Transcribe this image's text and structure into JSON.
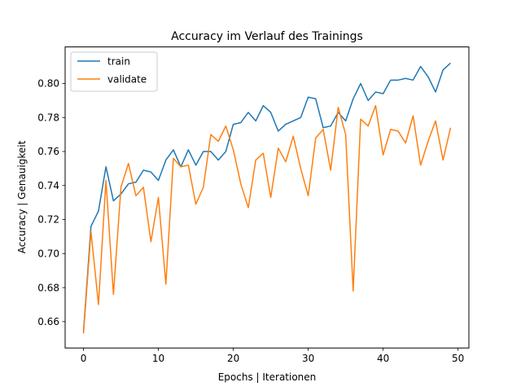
{
  "chart_data": {
    "type": "line",
    "title": "Accuracy im Verlauf des Trainings",
    "xlabel": "Epochs | Iterationen",
    "ylabel": "Accuracy | Genauigkeit",
    "xlim": [
      -2.45,
      51.45
    ],
    "ylim": [
      0.6445,
      0.8215
    ],
    "xticks": [
      0,
      10,
      20,
      30,
      40,
      50
    ],
    "xtick_labels": [
      "0",
      "10",
      "20",
      "30",
      "40",
      "50"
    ],
    "yticks": [
      0.66,
      0.68,
      0.7,
      0.72,
      0.74,
      0.76,
      0.78,
      0.8
    ],
    "ytick_labels": [
      "0.66",
      "0.68",
      "0.70",
      "0.72",
      "0.74",
      "0.76",
      "0.78",
      "0.80"
    ],
    "grid": false,
    "legend_position": "top-left",
    "x": [
      0,
      1,
      2,
      3,
      4,
      5,
      6,
      7,
      8,
      9,
      10,
      11,
      12,
      13,
      14,
      15,
      16,
      17,
      18,
      19,
      20,
      21,
      22,
      23,
      24,
      25,
      26,
      27,
      28,
      29,
      30,
      31,
      32,
      33,
      34,
      35,
      36,
      37,
      38,
      39,
      40,
      41,
      42,
      43,
      44,
      45,
      46,
      47,
      48,
      49
    ],
    "series": [
      {
        "name": "train",
        "color": "#1f77b4",
        "values": [
          0.654,
          0.716,
          0.725,
          0.751,
          0.731,
          0.735,
          0.741,
          0.742,
          0.749,
          0.748,
          0.743,
          0.755,
          0.761,
          0.751,
          0.761,
          0.752,
          0.76,
          0.76,
          0.755,
          0.76,
          0.776,
          0.777,
          0.783,
          0.778,
          0.787,
          0.783,
          0.772,
          0.776,
          0.778,
          0.78,
          0.792,
          0.791,
          0.774,
          0.775,
          0.783,
          0.778,
          0.791,
          0.8,
          0.79,
          0.795,
          0.794,
          0.802,
          0.802,
          0.803,
          0.802,
          0.81,
          0.804,
          0.795,
          0.808,
          0.812
        ]
      },
      {
        "name": "validate",
        "color": "#ff7f0e",
        "values": [
          0.653,
          0.713,
          0.67,
          0.743,
          0.676,
          0.739,
          0.753,
          0.734,
          0.739,
          0.707,
          0.733,
          0.682,
          0.756,
          0.751,
          0.752,
          0.729,
          0.739,
          0.77,
          0.766,
          0.775,
          0.761,
          0.741,
          0.727,
          0.755,
          0.759,
          0.733,
          0.762,
          0.754,
          0.769,
          0.75,
          0.734,
          0.768,
          0.773,
          0.749,
          0.786,
          0.77,
          0.678,
          0.779,
          0.775,
          0.787,
          0.758,
          0.773,
          0.772,
          0.765,
          0.781,
          0.752,
          0.766,
          0.778,
          0.755,
          0.774
        ]
      }
    ]
  }
}
